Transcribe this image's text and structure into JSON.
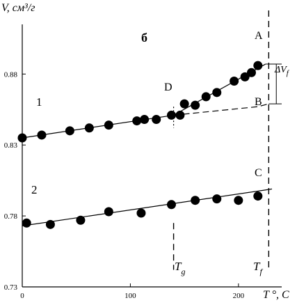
{
  "chart_data": {
    "type": "scatter",
    "title": "б",
    "ylabel": "V, см³/г",
    "xlabel": "T °, C",
    "xlim": [
      0,
      240
    ],
    "ylim": [
      0.73,
      0.915
    ],
    "x_ticks": [
      {
        "value": 0,
        "label": "0"
      },
      {
        "value": 100,
        "label": "100"
      },
      {
        "value": 200,
        "label": "200"
      }
    ],
    "y_ticks": [
      {
        "value": 0.73,
        "label": "0.73"
      },
      {
        "value": 0.78,
        "label": "0.78"
      },
      {
        "value": 0.83,
        "label": "0.83"
      },
      {
        "value": 0.88,
        "label": "0.88"
      }
    ],
    "grid": false,
    "legend": "none",
    "series": [
      {
        "name": "1",
        "x": [
          0,
          18,
          44,
          62,
          80,
          106,
          113,
          124,
          138,
          146,
          150,
          160,
          170,
          180,
          196,
          206,
          212,
          218
        ],
        "y": [
          0.835,
          0.837,
          0.84,
          0.842,
          0.844,
          0.847,
          0.848,
          0.848,
          0.851,
          0.851,
          0.859,
          0.858,
          0.864,
          0.867,
          0.875,
          0.878,
          0.881,
          0.886
        ],
        "fit": {
          "x": [
            0,
            140,
            225
          ],
          "y": [
            0.835,
            0.851,
            0.887
          ]
        }
      },
      {
        "name": "2",
        "x": [
          4,
          26,
          54,
          80,
          110,
          138,
          160,
          180,
          200,
          218
        ],
        "y": [
          0.775,
          0.774,
          0.777,
          0.783,
          0.782,
          0.788,
          0.791,
          0.792,
          0.791,
          0.794
        ],
        "fit": {
          "x": [
            0,
            231
          ],
          "y": [
            0.773,
            0.799
          ]
        }
      }
    ],
    "extrapolation": {
      "x": [
        140,
        218,
        228
      ],
      "y": [
        0.851,
        0.857,
        0.859
      ]
    },
    "annotations": {
      "A": "A",
      "B": "B",
      "C": "C",
      "D": "D",
      "delta": "ΔV",
      "delta_sub": "f",
      "tg": "T",
      "tg_sub": "g",
      "tf": "T",
      "tf_sub": "f"
    }
  }
}
